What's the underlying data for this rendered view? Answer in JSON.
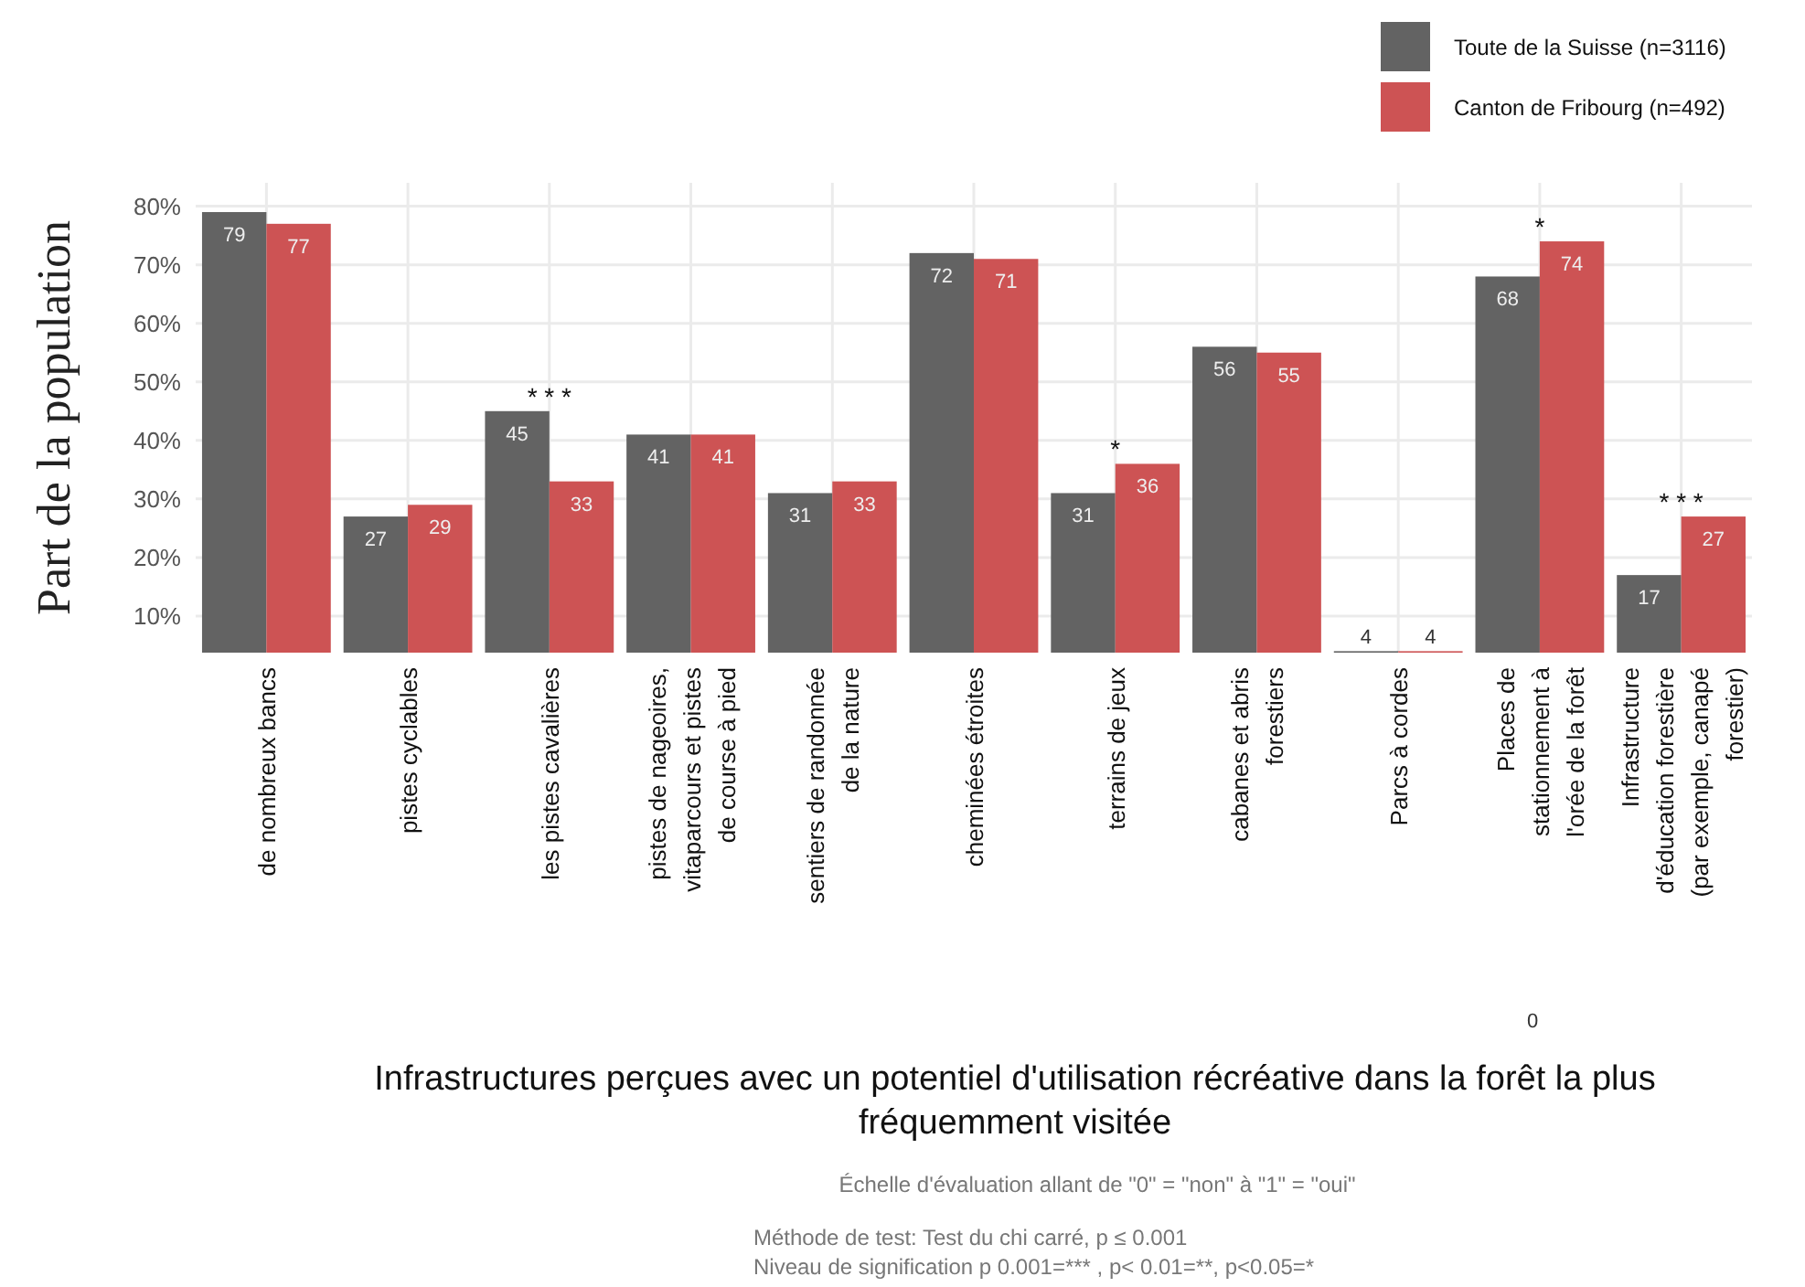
{
  "chart_data": {
    "type": "bar",
    "xlabel": "Infrastructures perçues avec un potentiel d'utilisation récréative dans la forêt la plus\nfréquemment visitée",
    "ylabel": "Part de la population",
    "categories": [
      "de nombreux bancs",
      "pistes cyclables",
      "les pistes cavalières",
      "pistes de nageoires,\nvitaparcours et pistes\nde course à pied",
      "sentiers de randonnée\nde la nature",
      "cheminées étroites",
      "terrains de jeux",
      "cabanes et abris\nforestiers",
      "Parcs à cordes",
      "Places de\nstationnement à\nl'orée de la forêt",
      "Infrastructure\nd'éducation forestière\n(par exemple, canapé\nforestier)"
    ],
    "series": [
      {
        "name": "Toute de la Suisse (n=3116)",
        "color": "#636363",
        "values": [
          79,
          27,
          45,
          41,
          31,
          72,
          31,
          56,
          4,
          68,
          17
        ]
      },
      {
        "name": "Canton de Fribourg (n=492)",
        "color": "#cd5354",
        "values": [
          77,
          29,
          33,
          41,
          33,
          71,
          36,
          55,
          4,
          74,
          27
        ]
      }
    ],
    "ylim": [
      3.75,
      84
    ],
    "yticks": [
      {
        "value": 10,
        "label": "10%"
      },
      {
        "value": 20,
        "label": "20%"
      },
      {
        "value": 30,
        "label": "30%"
      },
      {
        "value": 40,
        "label": "40%"
      },
      {
        "value": 50,
        "label": "50%"
      },
      {
        "value": 60,
        "label": "60%"
      },
      {
        "value": 70,
        "label": "70%"
      },
      {
        "value": 80,
        "label": "80%"
      }
    ],
    "grid": true,
    "legend": "top right",
    "data_labels": true,
    "annotations": [
      {
        "text": "* * *",
        "x": "les pistes cavalières",
        "y": 45
      },
      {
        "text": "*",
        "x": "terrains de jeux",
        "y": 36
      },
      {
        "text": "*",
        "x": "Places de\nstationnement à\nl'orée de la forêt",
        "y": 74
      },
      {
        "text": "* * *",
        "x": "Infrastructure\nd'éducation forestière\n(par exemple, canapé\nforestier)",
        "y": 27
      },
      "0",
      "Échelle d'évaluation allant de \"0\" = \"non\" à \"1\" = \"oui\"",
      "Méthode de test: Test du chi carré, p ≤ 0.001",
      "Niveau de signification p    0.001=*** , p< 0.01=**, p<0.05=*"
    ]
  }
}
